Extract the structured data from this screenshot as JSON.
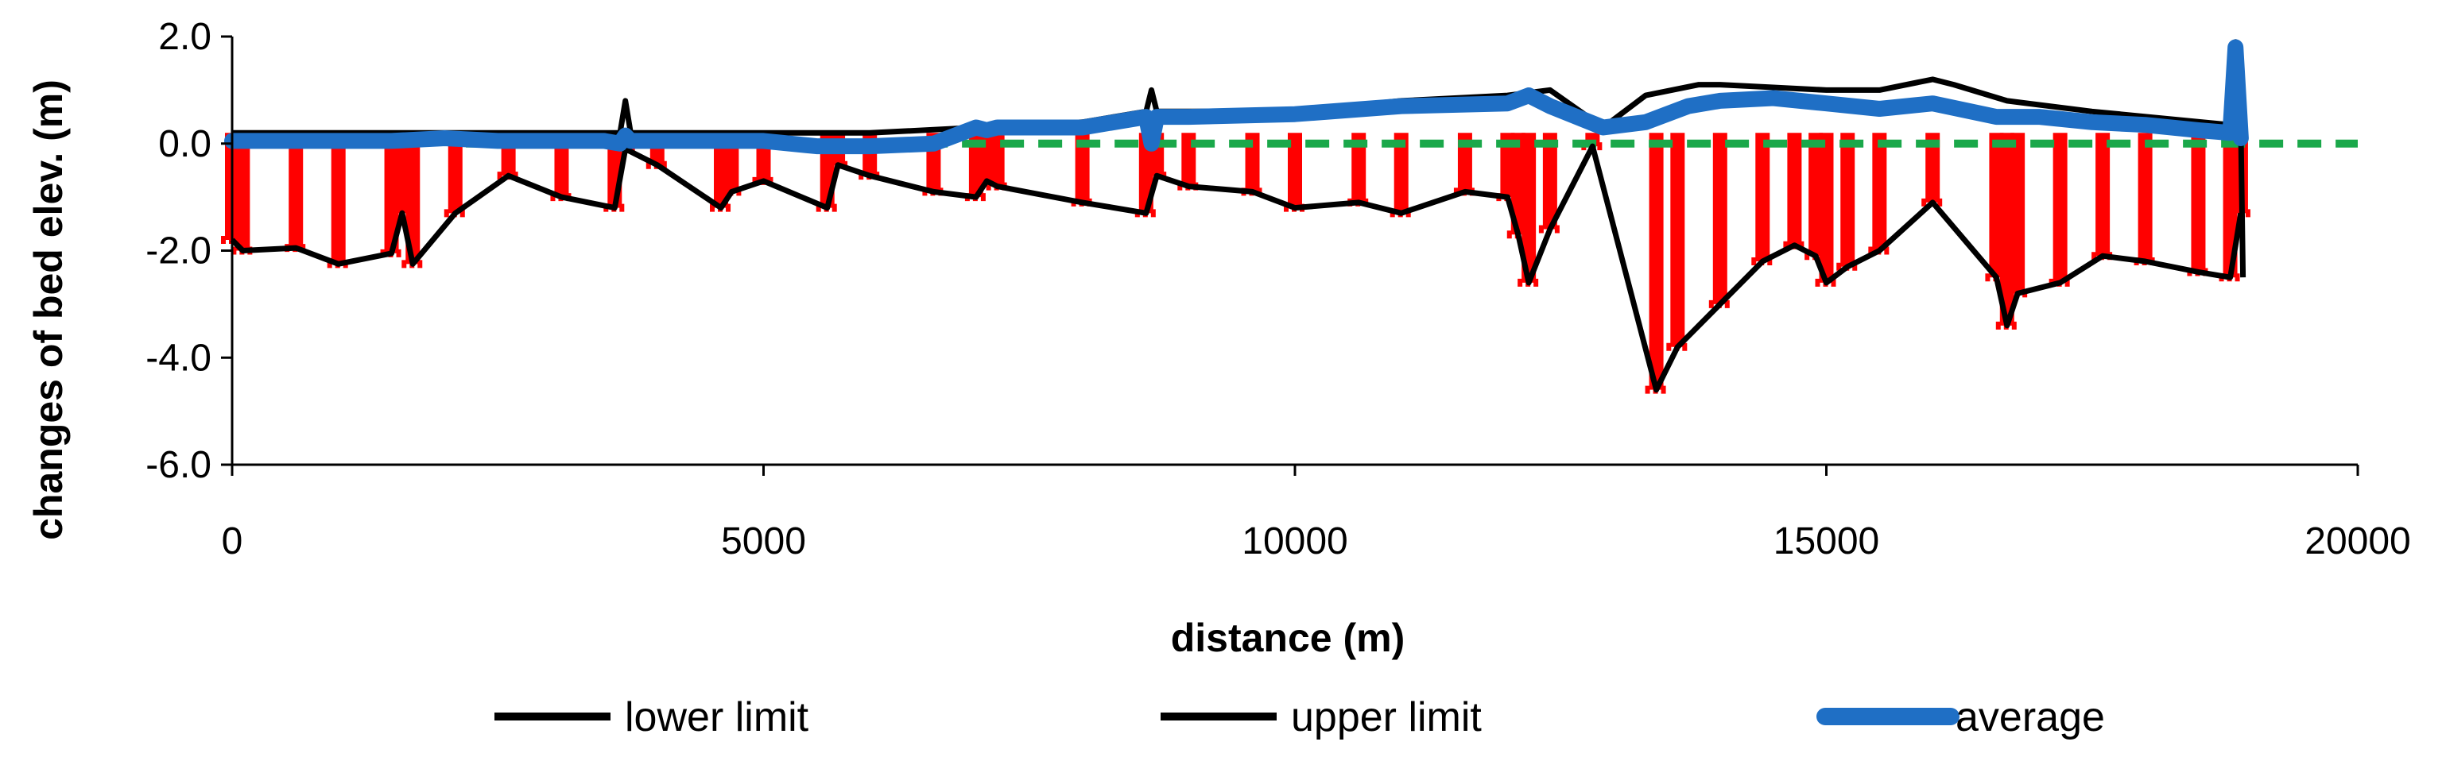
{
  "chart_data": {
    "type": "line",
    "title": "",
    "xlabel": "distance (m)",
    "ylabel": "changes of bed elev. (m)",
    "xlim": [
      0,
      20000
    ],
    "ylim": [
      -6.0,
      2.0
    ],
    "xticks": [
      0,
      5000,
      10000,
      15000,
      20000
    ],
    "xtick_labels": [
      "0",
      "5000",
      "10000",
      "15000",
      "20000"
    ],
    "yticks": [
      -6.0,
      -4.0,
      -2.0,
      0.0,
      2.0
    ],
    "ytick_labels": [
      "-6.0",
      "-4.0",
      "-2.0",
      "0.0",
      "2.0"
    ],
    "grid": false,
    "legend_position": "bottom",
    "colors": {
      "lower": "#000000",
      "upper": "#000000",
      "average": "#1f6fc5",
      "range_bars": "#ff0000",
      "zero_line": "#1aa84a"
    },
    "reference_line": {
      "y": 0.0,
      "style": "dashed"
    },
    "series": [
      {
        "name": "lower limit",
        "x": [
          0,
          100,
          600,
          1000,
          1500,
          1600,
          1700,
          2100,
          2600,
          3100,
          3600,
          3700,
          4000,
          4600,
          4700,
          5000,
          5600,
          5700,
          6000,
          6600,
          7000,
          7100,
          7200,
          8000,
          8600,
          8700,
          9000,
          9600,
          10000,
          10600,
          11000,
          11600,
          12000,
          12100,
          12200,
          12400,
          12800,
          13400,
          13600,
          14000,
          14400,
          14700,
          14900,
          15000,
          15200,
          15500,
          16000,
          16600,
          16700,
          16800,
          17200,
          17600,
          18000,
          18500,
          18800,
          18900
        ],
        "y": [
          -1.8,
          -2.0,
          -1.95,
          -2.25,
          -2.05,
          -1.3,
          -2.25,
          -1.3,
          -0.6,
          -1.0,
          -1.2,
          -0.1,
          -0.4,
          -1.2,
          -0.9,
          -0.7,
          -1.2,
          -0.4,
          -0.6,
          -0.9,
          -1.0,
          -0.7,
          -0.8,
          -1.1,
          -1.3,
          -0.6,
          -0.8,
          -0.9,
          -1.2,
          -1.1,
          -1.3,
          -0.9,
          -1.0,
          -1.7,
          -2.6,
          -1.6,
          -0.05,
          -4.6,
          -3.8,
          -3.0,
          -2.2,
          -1.9,
          -2.1,
          -2.6,
          -2.3,
          -2.0,
          -1.1,
          -2.5,
          -3.4,
          -2.8,
          -2.6,
          -2.1,
          -2.2,
          -2.4,
          -2.5,
          -1.3
        ]
      },
      {
        "name": "upper limit",
        "x": [
          0,
          3650,
          3700,
          3750,
          4000,
          5000,
          6000,
          7000,
          8000,
          8600,
          8650,
          8700,
          9000,
          10000,
          11000,
          12000,
          12400,
          12900,
          13300,
          13800,
          14000,
          14500,
          15000,
          15500,
          16000,
          16200,
          16700,
          17500,
          18800,
          18850,
          18900,
          18920
        ],
        "y": [
          0.2,
          0.2,
          0.8,
          0.2,
          0.2,
          0.2,
          0.2,
          0.3,
          0.4,
          0.6,
          1.0,
          0.6,
          0.6,
          0.6,
          0.8,
          0.9,
          1.0,
          0.3,
          0.9,
          1.1,
          1.1,
          1.05,
          1.0,
          1.0,
          1.2,
          1.1,
          0.8,
          0.6,
          0.35,
          1.9,
          0.3,
          -2.5
        ]
      },
      {
        "name": "average",
        "x": [
          0,
          1500,
          2000,
          2500,
          3000,
          3500,
          3650,
          3700,
          3750,
          4000,
          5000,
          5500,
          6000,
          6600,
          7000,
          7100,
          7200,
          7600,
          8000,
          8600,
          8650,
          8700,
          9000,
          10000,
          11000,
          12000,
          12200,
          12400,
          12900,
          13300,
          13700,
          14000,
          14500,
          15000,
          15500,
          16000,
          16600,
          17000,
          17500,
          18000,
          18500,
          18800,
          18850,
          18900
        ],
        "y": [
          0.05,
          0.05,
          0.1,
          0.05,
          0.05,
          0.05,
          0.0,
          0.15,
          0.05,
          0.05,
          0.05,
          -0.05,
          -0.05,
          0.0,
          0.3,
          0.25,
          0.3,
          0.3,
          0.3,
          0.5,
          0.0,
          0.5,
          0.5,
          0.55,
          0.7,
          0.75,
          0.9,
          0.7,
          0.3,
          0.4,
          0.7,
          0.8,
          0.85,
          0.75,
          0.65,
          0.75,
          0.5,
          0.5,
          0.4,
          0.35,
          0.25,
          0.2,
          1.8,
          0.1
        ]
      }
    ]
  },
  "legend": {
    "lower_label": "lower limit",
    "upper_label": "upper limit",
    "average_label": "average"
  }
}
